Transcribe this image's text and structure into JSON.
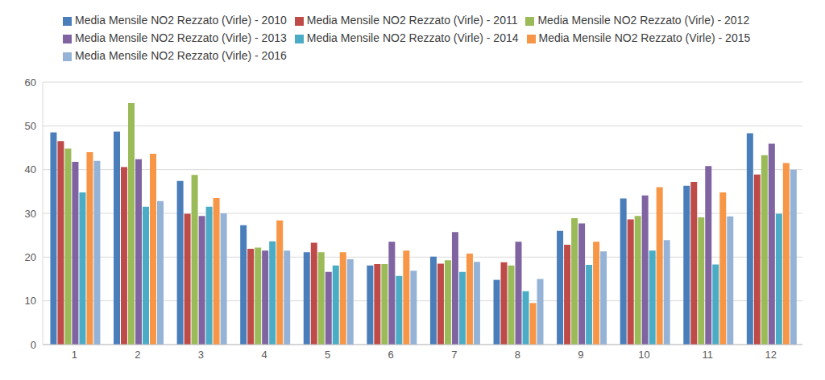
{
  "chart_data": {
    "type": "bar",
    "categories": [
      "1",
      "2",
      "3",
      "4",
      "5",
      "6",
      "7",
      "8",
      "9",
      "10",
      "11",
      "12"
    ],
    "series": [
      {
        "name": "Media Mensile NO2 Rezzato (Virle) - 2010",
        "color": "#4a7ebb",
        "values": [
          48.5,
          48.7,
          37.4,
          27.3,
          21.1,
          18.1,
          20.1,
          14.8,
          26,
          33.4,
          36.3,
          48.3
        ]
      },
      {
        "name": "Media Mensile NO2 Rezzato (Virle) - 2011",
        "color": "#be4b48",
        "values": [
          46.5,
          40.6,
          29.9,
          21.9,
          23.3,
          18.4,
          18.5,
          18.8,
          22.8,
          28.6,
          37.2,
          38.9
        ]
      },
      {
        "name": "Media Mensile NO2 Rezzato (Virle) - 2012",
        "color": "#9bbb59",
        "values": [
          44.8,
          55.2,
          38.8,
          22.2,
          21.1,
          18.4,
          19.3,
          18.1,
          28.9,
          29.4,
          29.1,
          43.3
        ]
      },
      {
        "name": "Media Mensile NO2 Rezzato (Virle) - 2013",
        "color": "#8064a2",
        "values": [
          41.8,
          42.4,
          29.4,
          21.5,
          16.6,
          23.5,
          25.7,
          23.5,
          27.7,
          34.1,
          40.8,
          45.9
        ]
      },
      {
        "name": "Media Mensile NO2 Rezzato (Virle) - 2014",
        "color": "#4bacc6",
        "values": [
          34.8,
          31.5,
          31.5,
          23.6,
          18.1,
          15.7,
          16.6,
          12.2,
          18.2,
          21.5,
          18.3,
          29.9
        ]
      },
      {
        "name": "Media Mensile NO2 Rezzato (Virle) - 2015",
        "color": "#f79646",
        "values": [
          44,
          43.6,
          33.5,
          28.4,
          21.1,
          21.5,
          20.8,
          9.5,
          23.5,
          36,
          34.8,
          41.5
        ]
      },
      {
        "name": "Media Mensile NO2 Rezzato (Virle) - 2016",
        "color": "#95b3d7",
        "values": [
          42,
          32.8,
          30,
          21.5,
          19.5,
          16.9,
          18.9,
          15,
          21.3,
          23.9,
          29.3,
          40
        ]
      }
    ],
    "ylim": [
      0,
      60
    ],
    "yticks": [
      0,
      10,
      20,
      30,
      40,
      50,
      60
    ],
    "grid": true,
    "legend": "top"
  }
}
